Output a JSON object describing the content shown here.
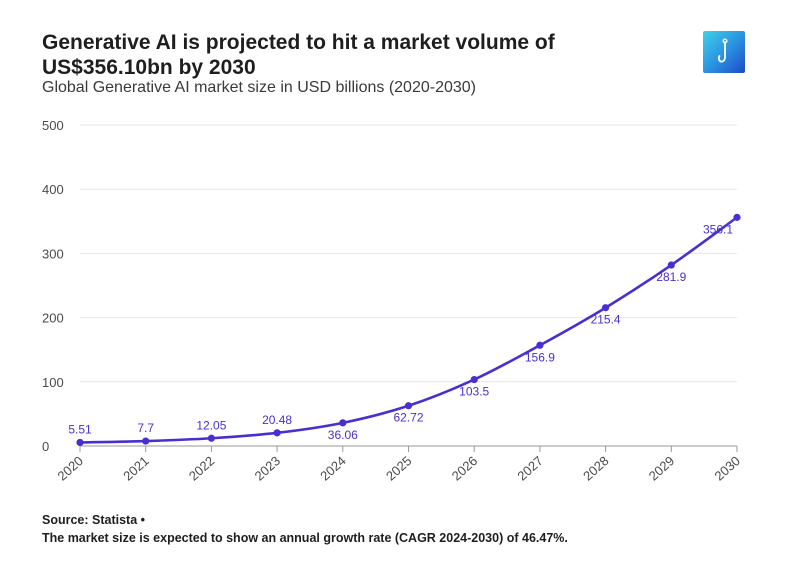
{
  "header": {
    "title": "Generative AI is projected to hit a market volume of US$356.10bn by 2030",
    "subtitle": "Global Generative AI market size in USD billions (2020-2030)",
    "logo_icon": "hook-icon"
  },
  "footer": {
    "source": "Source: Statista •",
    "note": "The market size is expected to show an annual growth rate (CAGR 2024-2030) of 46.47%."
  },
  "chart_data": {
    "type": "line",
    "title": "Generative AI is projected to hit a market volume of US$356.10bn by 2030",
    "subtitle": "Global Generative AI market size in USD billions (2020-2030)",
    "xlabel": "",
    "ylabel": "",
    "categories": [
      "2020",
      "2021",
      "2022",
      "2023",
      "2024",
      "2025",
      "2026",
      "2027",
      "2028",
      "2029",
      "2030"
    ],
    "series": [
      {
        "values": [
          5.51,
          7.7,
          12.05,
          20.48,
          36.06,
          62.72,
          103.5,
          156.9,
          215.4,
          281.9,
          356.1
        ],
        "labels": [
          "5.51",
          "7.7",
          "12.05",
          "20.48",
          "36.06",
          "62.72",
          "103.5",
          "156.9",
          "215.4",
          "281.9",
          "356.1"
        ],
        "label_positions": [
          "above",
          "above",
          "above",
          "above",
          "below",
          "below",
          "below",
          "below",
          "below",
          "below",
          "below"
        ]
      }
    ],
    "ylim": [
      0,
      500
    ],
    "yticks": [
      0,
      100,
      200,
      300,
      400,
      500
    ],
    "grid": true,
    "legend": "none",
    "colors": {
      "line": "#4a2fd0",
      "grid": "#e6e6e6",
      "axis": "#9a9a9a"
    }
  }
}
